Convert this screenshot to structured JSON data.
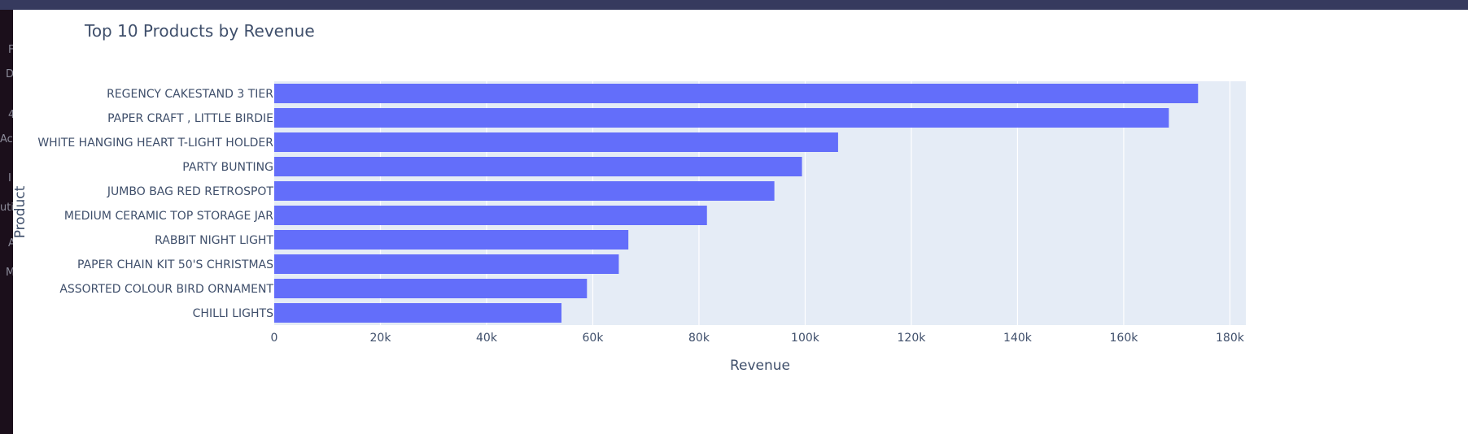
{
  "edge_fragments": [
    "F",
    "D",
    "4",
    "Ac",
    "I",
    "uti",
    "A",
    "M"
  ],
  "chart_data": {
    "type": "bar",
    "orientation": "horizontal",
    "title": "Top 10 Products by Revenue",
    "xlabel": "Revenue",
    "ylabel": "Product",
    "categories": [
      "REGENCY CAKESTAND 3 TIER",
      "PAPER CRAFT , LITTLE BIRDIE",
      "WHITE HANGING HEART T-LIGHT HOLDER",
      "PARTY BUNTING",
      "JUMBO BAG RED RETROSPOT",
      "MEDIUM CERAMIC TOP STORAGE JAR",
      "RABBIT NIGHT LIGHT",
      "PAPER CHAIN KIT 50'S CHRISTMAS",
      "ASSORTED COLOUR BIRD ORNAMENT",
      "CHILLI LIGHTS"
    ],
    "values": [
      174000,
      168500,
      106200,
      99400,
      94200,
      81500,
      66700,
      64900,
      58900,
      54100
    ],
    "xlim": [
      0,
      183000
    ],
    "xticks": [
      0,
      20000,
      40000,
      60000,
      80000,
      100000,
      120000,
      140000,
      160000,
      180000
    ],
    "xtick_labels": [
      "0",
      "20k",
      "40k",
      "60k",
      "80k",
      "100k",
      "120k",
      "140k",
      "160k",
      "180k"
    ],
    "bar_color": "#636efa",
    "plot_background": "#e5ecf6",
    "grid": true
  }
}
